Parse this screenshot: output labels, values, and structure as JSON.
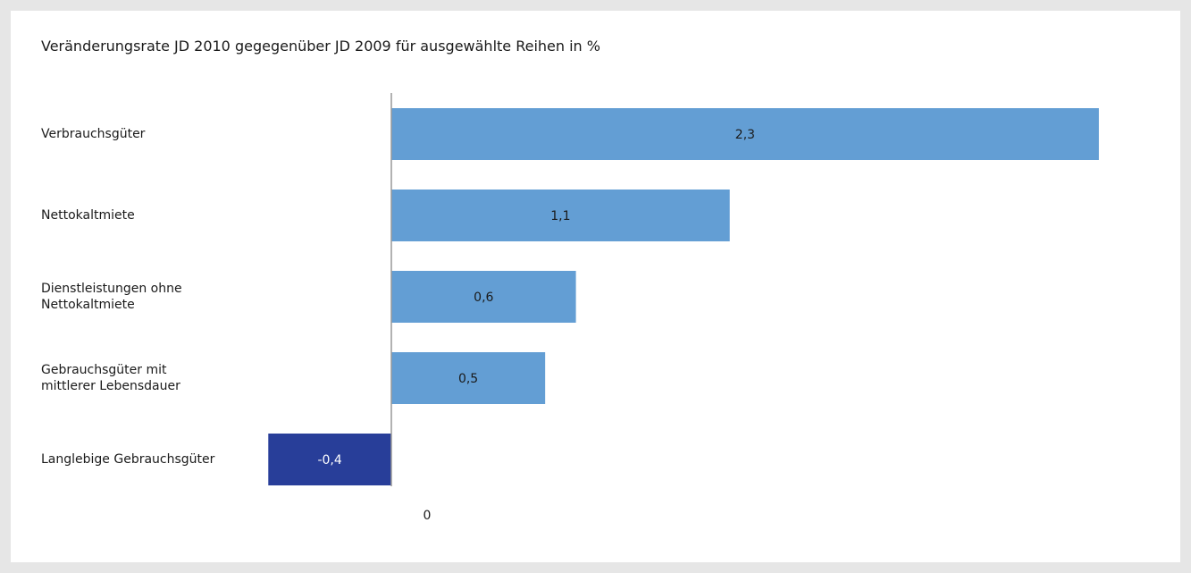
{
  "chart_data": {
    "type": "bar",
    "orientation": "horizontal",
    "title": "Veränderungsrate JD 2010 gegegenüber JD 2009 für ausgewählte Reihen in %",
    "categories": [
      "Verbrauchsgüter",
      "Nettokaltmiete",
      "Dienstleistungen ohne\nNettokaltmiete",
      "Gebrauchsgüter mit\nmittlerer Lebensdauer",
      "Langlebige Gebrauchsgüter"
    ],
    "values": [
      2.3,
      1.1,
      0.6,
      0.5,
      -0.4
    ],
    "data_labels": [
      "2,3",
      "1,1",
      "0,6",
      "0,5",
      "-0,4"
    ],
    "x_ticks": [
      "0"
    ],
    "xlim": [
      -0.4,
      2.3
    ],
    "grid": false,
    "legend": "none",
    "colors": {
      "positive": "#639ed4",
      "negative": "#283e99",
      "axis": "#999999",
      "label_dark": "#1a1a1a",
      "label_light": "#ffffff"
    }
  }
}
